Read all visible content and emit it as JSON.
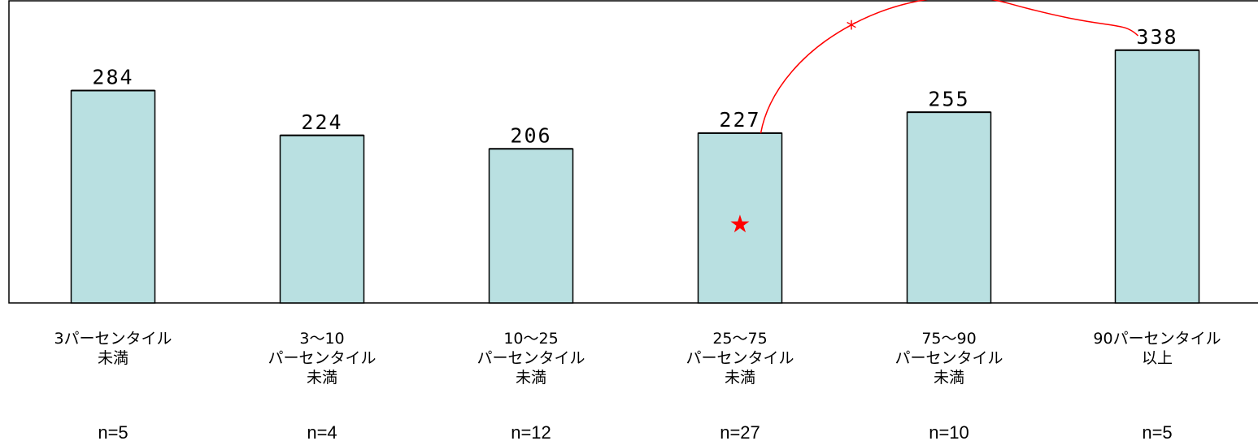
{
  "chart_data": {
    "type": "bar",
    "categories": [
      [
        "3パーセンタイル",
        "未満"
      ],
      [
        "3〜10",
        "パーセンタイル",
        "未満"
      ],
      [
        "10〜25",
        "パーセンタイル",
        "未満"
      ],
      [
        "25〜75",
        "パーセンタイル",
        "未満"
      ],
      [
        "75〜90",
        "パーセンタイル",
        "未満"
      ],
      [
        "90パーセンタイル",
        "以上"
      ]
    ],
    "values": [
      284,
      224,
      206,
      227,
      255,
      338
    ],
    "n_labels": [
      "n=5",
      "n=4",
      "n=12",
      "n=27",
      "n=10",
      "n=5"
    ],
    "annotations": {
      "significance_symbol": "*",
      "significance_between": [
        3,
        5
      ],
      "reference_marker": "★",
      "reference_index": 3
    },
    "colors": {
      "bar_fill": "#b9e0e1",
      "bar_stroke": "#000000",
      "annotation": "#ff0000"
    },
    "grid": false
  }
}
